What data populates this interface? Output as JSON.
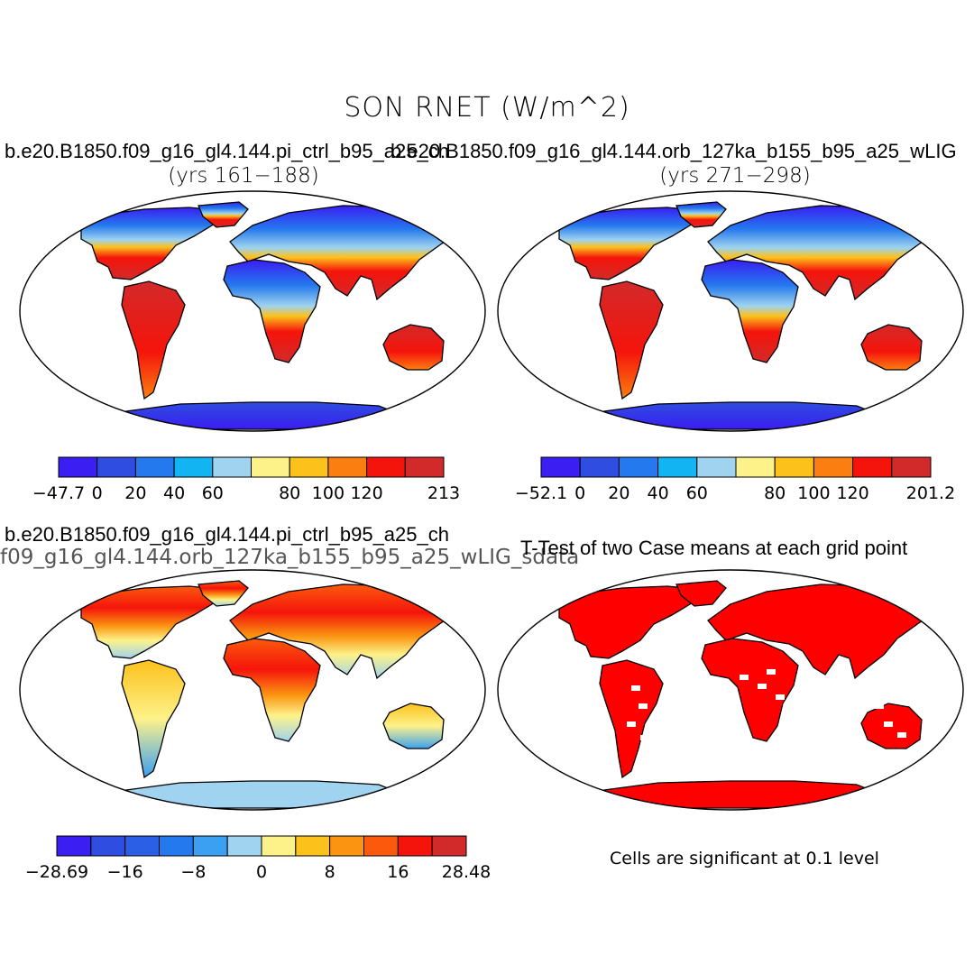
{
  "title": "SON RNET (W/m^2)",
  "panels": [
    {
      "id": "case1",
      "title": "b.e20.B1850.f09_g16_gl4.144.pi_ctrl_b95_a25_ch",
      "subtitle": "(yrs 161−188)",
      "colorbar": {
        "colors": [
          "#3a1ef2",
          "#2f4de0",
          "#2479ee",
          "#12b4f2",
          "#9fd3ef",
          "#fdf28a",
          "#fcc11b",
          "#fb7f10",
          "#f5140b",
          "#d22a2a"
        ],
        "labels": [
          "−47.7",
          "0",
          "20",
          "40",
          "60",
          "80",
          "100",
          "120",
          "213"
        ]
      }
    },
    {
      "id": "case2",
      "title": "b.e20.B1850.f09_g16_gl4.144.orb_127ka_b155_b95_a25_wLIG",
      "subtitle": "(yrs 271−298)",
      "colorbar": {
        "colors": [
          "#3a1ef2",
          "#2f4de0",
          "#2479ee",
          "#12b4f2",
          "#9fd3ef",
          "#fdf28a",
          "#fcc11b",
          "#fb7f10",
          "#f5140b",
          "#d22a2a"
        ],
        "labels": [
          "−52.1",
          "0",
          "20",
          "40",
          "60",
          "80",
          "100",
          "120",
          "201.2"
        ]
      }
    },
    {
      "id": "diff",
      "title": "b.e20.B1850.f09_g16_gl4.144.pi_ctrl_b95_a25_ch",
      "subtitle": "f09_g16_gl4.144.orb_127ka_b155_b95_a25_wLIG_sdata",
      "colorbar": {
        "colors": [
          "#3a1ef2",
          "#2f4de0",
          "#2a5fe6",
          "#2479ee",
          "#3ba0f2",
          "#9fd3ef",
          "#fdf28a",
          "#fcc11b",
          "#fb9410",
          "#fb5a0c",
          "#f5140b",
          "#d22a2a"
        ],
        "labels": [
          "−28.69",
          "−16",
          "−8",
          "0",
          "8",
          "16",
          "28.48"
        ]
      }
    },
    {
      "id": "ttest",
      "title": "T-Test of two Case means at each grid point",
      "note": "Cells are significant at 0.1 level"
    }
  ],
  "colors": {
    "significant": "#ff0000",
    "ocean": "#ffffff",
    "coast": "#000000"
  }
}
